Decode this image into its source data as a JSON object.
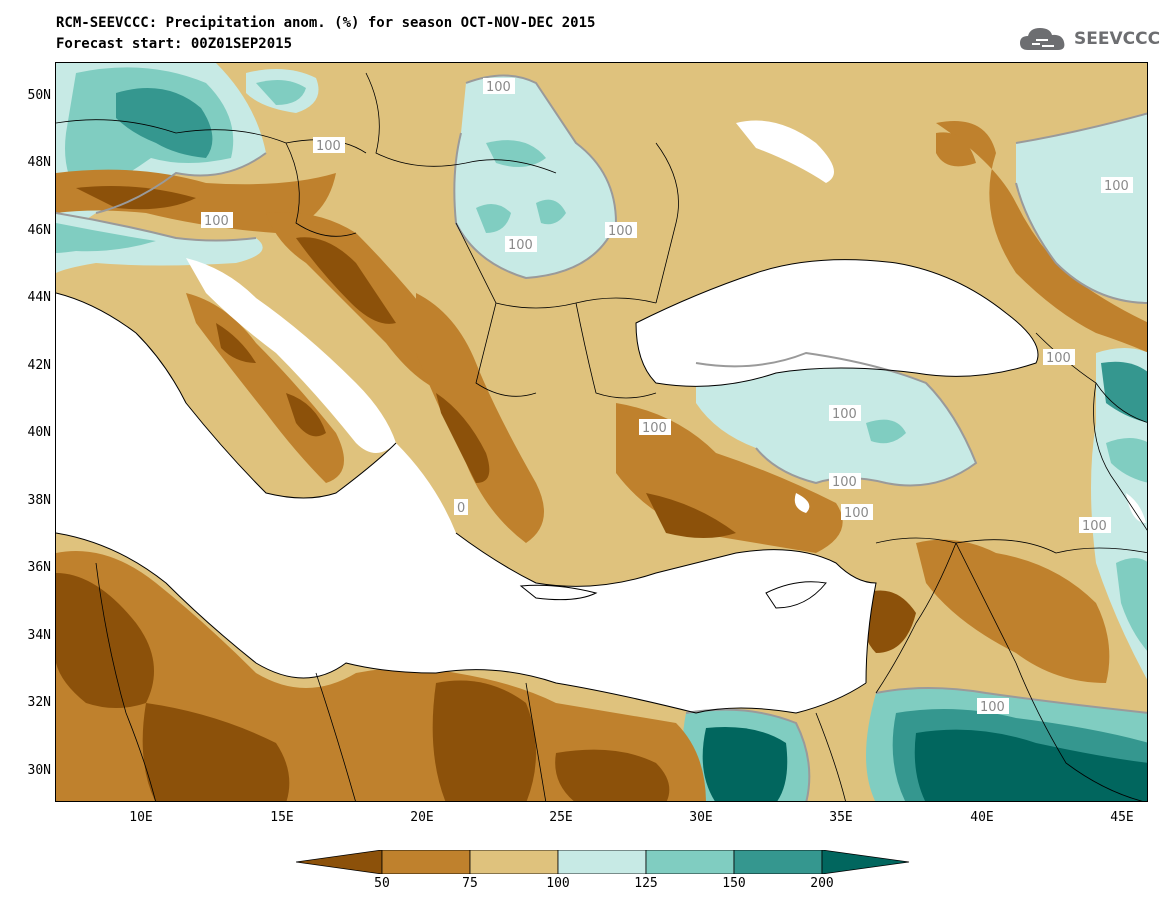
{
  "header": {
    "title_line1": "RCM-SEEVCCC: Precipitation anom. (%) for season OCT-NOV-DEC 2015",
    "title_line2": "Forecast start: 00Z01SEP2015",
    "logo_text": "SEEVCCC"
  },
  "map": {
    "lat_labels": [
      "50N",
      "48N",
      "46N",
      "44N",
      "42N",
      "40N",
      "38N",
      "36N",
      "34N",
      "32N",
      "30N"
    ],
    "lon_labels": [
      "10E",
      "15E",
      "20E",
      "25E",
      "30E",
      "35E",
      "40E",
      "45E"
    ],
    "contour_label": "100",
    "contour_label_partial": "0",
    "colors": {
      "below_50": "#8c510a",
      "50_75": "#bf812d",
      "75_100": "#dfc27d",
      "100_125": "#c7eae5",
      "125_150": "#80cdc1",
      "150_200": "#35978f",
      "above_200": "#01665e",
      "sea": "#ffffff",
      "contour": "#9a9a9a"
    }
  },
  "colorbar": {
    "labels": [
      "50",
      "75",
      "100",
      "125",
      "150",
      "200"
    ],
    "colors": [
      "#8c510a",
      "#bf812d",
      "#dfc27d",
      "#c7eae5",
      "#80cdc1",
      "#35978f",
      "#01665e"
    ]
  }
}
